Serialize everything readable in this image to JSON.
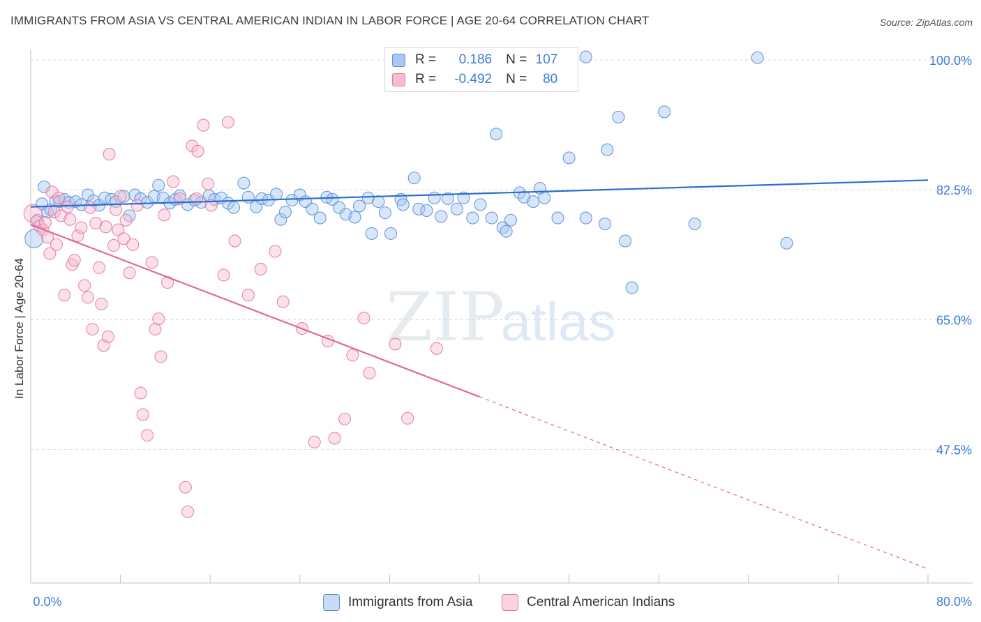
{
  "header": {
    "title": "IMMIGRANTS FROM ASIA VS CENTRAL AMERICAN INDIAN IN LABOR FORCE | AGE 20-64 CORRELATION CHART",
    "source": "Source: ZipAtlas.com"
  },
  "watermark": {
    "zip": "ZIP",
    "atlas": "atlas"
  },
  "legend": {
    "r_label": "R =",
    "n_label": "N =",
    "rows": [
      {
        "r": "0.186",
        "n": "107"
      },
      {
        "r": "-0.492",
        "n": "80"
      }
    ]
  },
  "colors": {
    "blue_fill": "#a9c7f2",
    "blue_stroke": "#5b8fd9",
    "blue_line": "#2a6fcf",
    "pink_fill": "#f6bcd0",
    "pink_stroke": "#e47aa0",
    "pink_line": "#e0679a",
    "axis_text": "#3f7bd8",
    "grid": "#d9d9d9"
  },
  "chart_data": {
    "type": "scatter",
    "xlabel": "",
    "ylabel": "In Labor Force | Age 20-64",
    "xlim": [
      0,
      80
    ],
    "ylim": [
      29.5,
      101.5
    ],
    "x_tick_labels": [
      "0.0%",
      "80.0%"
    ],
    "y_ticks": [
      47.5,
      65.0,
      82.5,
      100.0
    ],
    "y_tick_labels": [
      "47.5%",
      "65.0%",
      "82.5%",
      "100.0%"
    ],
    "grid": true,
    "legend_position": "top-center",
    "series": [
      {
        "name": "Immigrants from Asia",
        "color": "blue",
        "trend": {
          "x0": 0,
          "y0": 80.2,
          "x1": 80,
          "y1": 83.8,
          "solid_to": 80
        },
        "points": [
          [
            0.3,
            75.9
          ],
          [
            0.6,
            78.4
          ],
          [
            1.0,
            80.6
          ],
          [
            1.2,
            82.9
          ],
          [
            1.5,
            79.5
          ],
          [
            1.8,
            79.8
          ],
          [
            2.2,
            81.0
          ],
          [
            2.6,
            80.9
          ],
          [
            3.0,
            81.2
          ],
          [
            3.4,
            80.8
          ],
          [
            4.0,
            80.9
          ],
          [
            4.5,
            80.5
          ],
          [
            5.1,
            81.8
          ],
          [
            5.6,
            81.0
          ],
          [
            6.1,
            80.4
          ],
          [
            6.6,
            81.4
          ],
          [
            7.2,
            81.2
          ],
          [
            7.6,
            80.9
          ],
          [
            8.3,
            81.6
          ],
          [
            8.8,
            79.0
          ],
          [
            9.3,
            81.8
          ],
          [
            9.8,
            81.3
          ],
          [
            10.4,
            80.8
          ],
          [
            11.0,
            81.6
          ],
          [
            11.4,
            83.1
          ],
          [
            11.8,
            81.4
          ],
          [
            12.4,
            80.7
          ],
          [
            12.9,
            81.2
          ],
          [
            13.3,
            81.7
          ],
          [
            14.0,
            80.5
          ],
          [
            14.6,
            81.1
          ],
          [
            15.2,
            80.8
          ],
          [
            15.9,
            81.7
          ],
          [
            16.4,
            81.2
          ],
          [
            17.0,
            81.4
          ],
          [
            17.6,
            80.7
          ],
          [
            18.1,
            80.1
          ],
          [
            19.0,
            83.4
          ],
          [
            19.4,
            81.5
          ],
          [
            20.1,
            80.2
          ],
          [
            20.6,
            81.3
          ],
          [
            21.2,
            81.1
          ],
          [
            21.9,
            81.9
          ],
          [
            22.3,
            78.5
          ],
          [
            22.7,
            79.5
          ],
          [
            23.3,
            81.1
          ],
          [
            24.0,
            81.8
          ],
          [
            24.5,
            80.9
          ],
          [
            25.1,
            79.9
          ],
          [
            25.8,
            78.7
          ],
          [
            26.4,
            81.5
          ],
          [
            26.9,
            81.2
          ],
          [
            27.5,
            80.1
          ],
          [
            28.1,
            79.2
          ],
          [
            28.9,
            78.8
          ],
          [
            29.3,
            80.3
          ],
          [
            30.1,
            81.4
          ],
          [
            30.4,
            76.6
          ],
          [
            31.0,
            80.9
          ],
          [
            31.6,
            79.4
          ],
          [
            32.1,
            76.6
          ],
          [
            33.0,
            81.2
          ],
          [
            33.2,
            80.5
          ],
          [
            34.2,
            84.1
          ],
          [
            34.6,
            79.9
          ],
          [
            35.3,
            79.7
          ],
          [
            36.0,
            81.4
          ],
          [
            36.6,
            78.9
          ],
          [
            37.2,
            81.3
          ],
          [
            38.0,
            79.9
          ],
          [
            38.6,
            81.4
          ],
          [
            39.4,
            78.7
          ],
          [
            40.1,
            80.5
          ],
          [
            41.1,
            78.7
          ],
          [
            41.5,
            90.0
          ],
          [
            42.1,
            77.4
          ],
          [
            42.4,
            76.9
          ],
          [
            42.8,
            78.4
          ],
          [
            43.6,
            82.1
          ],
          [
            44.0,
            81.5
          ],
          [
            44.8,
            80.9
          ],
          [
            45.4,
            82.7
          ],
          [
            45.8,
            81.4
          ],
          [
            47.0,
            78.7
          ],
          [
            48.0,
            86.8
          ],
          [
            49.5,
            78.7
          ],
          [
            51.2,
            77.9
          ],
          [
            51.4,
            87.9
          ],
          [
            52.4,
            92.3
          ],
          [
            53.0,
            75.6
          ],
          [
            53.6,
            69.3
          ],
          [
            56.5,
            93.0
          ],
          [
            59.2,
            77.9
          ],
          [
            64.8,
            100.3
          ],
          [
            67.4,
            75.3
          ],
          [
            49.5,
            100.4
          ]
        ]
      },
      {
        "name": "Central American Indians",
        "color": "pink",
        "trend": {
          "x0": 0,
          "y0": 77.8,
          "x1": 80,
          "y1": 31.4,
          "solid_to": 40
        },
        "points": [
          [
            0.2,
            79.3
          ],
          [
            0.5,
            78.2
          ],
          [
            0.8,
            77.6
          ],
          [
            1.1,
            77.1
          ],
          [
            1.3,
            78.1
          ],
          [
            1.5,
            76.1
          ],
          [
            1.7,
            73.9
          ],
          [
            1.9,
            82.2
          ],
          [
            2.1,
            79.5
          ],
          [
            2.3,
            75.1
          ],
          [
            2.5,
            81.4
          ],
          [
            2.7,
            79.0
          ],
          [
            3.0,
            68.3
          ],
          [
            3.3,
            80.2
          ],
          [
            3.5,
            78.5
          ],
          [
            3.7,
            72.4
          ],
          [
            3.9,
            73.0
          ],
          [
            4.2,
            76.3
          ],
          [
            4.5,
            77.4
          ],
          [
            4.8,
            69.6
          ],
          [
            5.1,
            68.0
          ],
          [
            5.3,
            80.1
          ],
          [
            5.5,
            63.7
          ],
          [
            5.8,
            78.0
          ],
          [
            6.1,
            72.0
          ],
          [
            6.3,
            67.1
          ],
          [
            6.5,
            61.5
          ],
          [
            6.7,
            77.5
          ],
          [
            6.9,
            62.7
          ],
          [
            7.0,
            87.3
          ],
          [
            7.4,
            75.0
          ],
          [
            7.6,
            79.8
          ],
          [
            7.8,
            77.1
          ],
          [
            8.0,
            81.6
          ],
          [
            8.3,
            75.9
          ],
          [
            8.5,
            78.4
          ],
          [
            8.8,
            71.3
          ],
          [
            9.1,
            75.1
          ],
          [
            9.5,
            80.4
          ],
          [
            9.8,
            55.1
          ],
          [
            10.0,
            52.2
          ],
          [
            10.4,
            49.4
          ],
          [
            10.8,
            72.7
          ],
          [
            11.1,
            63.7
          ],
          [
            11.4,
            65.1
          ],
          [
            11.6,
            60.0
          ],
          [
            11.9,
            79.1
          ],
          [
            12.2,
            70.0
          ],
          [
            12.7,
            83.6
          ],
          [
            13.3,
            81.3
          ],
          [
            13.8,
            42.4
          ],
          [
            14.0,
            39.1
          ],
          [
            14.4,
            88.4
          ],
          [
            14.9,
            87.7
          ],
          [
            15.4,
            91.2
          ],
          [
            15.8,
            83.3
          ],
          [
            16.1,
            80.4
          ],
          [
            17.2,
            71.0
          ],
          [
            17.6,
            91.6
          ],
          [
            18.2,
            75.6
          ],
          [
            19.4,
            68.3
          ],
          [
            20.5,
            71.8
          ],
          [
            21.8,
            74.2
          ],
          [
            22.5,
            67.4
          ],
          [
            24.2,
            63.8
          ],
          [
            25.3,
            48.5
          ],
          [
            26.5,
            62.1
          ],
          [
            27.1,
            49.0
          ],
          [
            28.0,
            51.6
          ],
          [
            28.7,
            60.2
          ],
          [
            29.7,
            65.2
          ],
          [
            30.2,
            57.8
          ],
          [
            32.5,
            61.7
          ],
          [
            33.6,
            51.7
          ],
          [
            36.2,
            61.1
          ],
          [
            14.8,
            81.3
          ]
        ]
      }
    ]
  },
  "bottom_legend": {
    "items": [
      "Immigrants from Asia",
      "Central American Indians"
    ]
  }
}
